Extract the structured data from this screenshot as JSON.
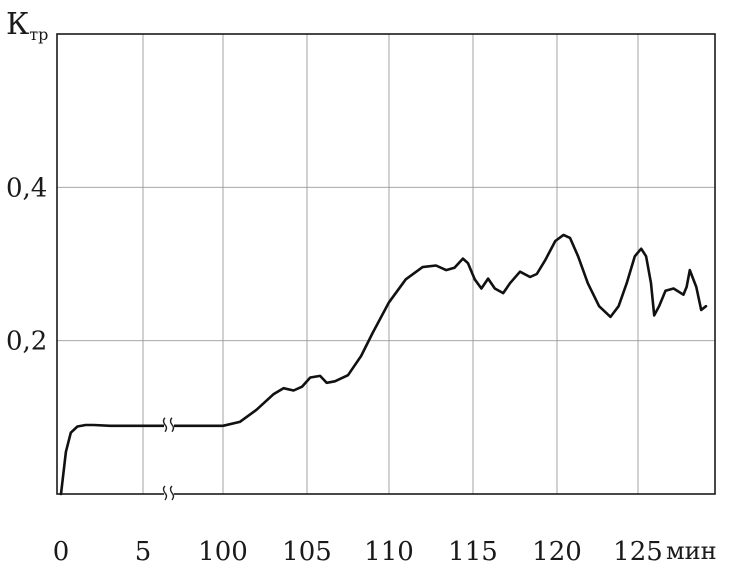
{
  "chart_data": {
    "type": "line",
    "ylabel_main": "К",
    "ylabel_sub": "тр",
    "x_unit": "мин",
    "x_ticks": [
      "0",
      "5",
      "100",
      "105",
      "110",
      "115",
      "120",
      "125"
    ],
    "y_ticks": [
      "0,2",
      "0,4"
    ],
    "y_tick_values": [
      0.2,
      0.4
    ],
    "ylim": [
      0,
      0.6
    ],
    "axis_break_between": [
      "5",
      "100"
    ],
    "grid": true,
    "series": [
      {
        "x": [
          0,
          0.3,
          0.6,
          1.0,
          1.5,
          2.0,
          3.0,
          5.0,
          6.0,
          100.0,
          101.0,
          102.0,
          103.0,
          103.6,
          104.2,
          104.7,
          105.2,
          105.8,
          106.2,
          106.7,
          107.5,
          108.3,
          109.0,
          110.0,
          111.0,
          112.0,
          112.8,
          113.4,
          113.9,
          114.4,
          114.7,
          115.1,
          115.5,
          115.9,
          116.3,
          116.8,
          117.2,
          117.8,
          118.4,
          118.8,
          119.3,
          119.9,
          120.4,
          120.8,
          121.3,
          121.9,
          122.6,
          123.3,
          123.8,
          124.3,
          124.8,
          125.2,
          125.5,
          125.8,
          126.0,
          126.3,
          126.7,
          127.2,
          127.8,
          128.0,
          128.2,
          128.6,
          128.9,
          129.2
        ]
      }
    ]
  }
}
